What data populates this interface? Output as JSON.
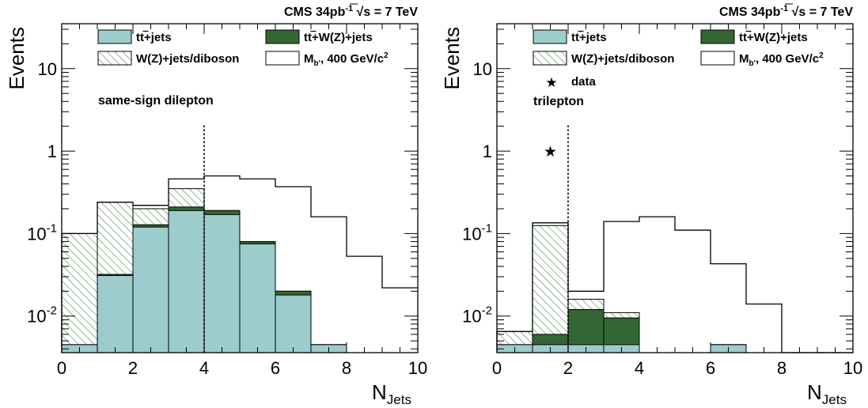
{
  "chart_data": [
    {
      "type": "bar",
      "header": {
        "prefix": "CMS 34pb",
        "sup": "-1",
        "energy": "s = 7 TeV"
      },
      "ylabel": "Events",
      "xlabel": {
        "main": "N",
        "sub": "Jets"
      },
      "annotation": "same-sign dilepton",
      "xlim": [
        0,
        10
      ],
      "ylim": [
        0.0036,
        35
      ],
      "yscale": "log",
      "x_ticks": [
        "0",
        "2",
        "4",
        "6",
        "8",
        "10"
      ],
      "y_ticks": [
        {
          "value": 0.01,
          "base": "10",
          "exp": "-2"
        },
        {
          "value": 0.1,
          "base": "10",
          "exp": "-1"
        },
        {
          "value": 1,
          "base": "1",
          "exp": ""
        },
        {
          "value": 10,
          "base": "10",
          "exp": ""
        }
      ],
      "cut_line": 4,
      "legend": {
        "ttjets": {
          "main": "tt",
          "suffix": "+jets"
        },
        "ttwz": {
          "main": "tt",
          "suffix": "+W(Z)+jets"
        },
        "wz": {
          "text": "W(Z)+jets/diboson"
        },
        "signal": {
          "main": "M",
          "sub": "b'",
          "mid": ", 400 GeV/c",
          "sup": "2"
        }
      },
      "bin_edges": [
        0,
        1,
        2,
        3,
        4,
        5,
        6,
        7,
        8,
        9,
        10
      ],
      "stack": {
        "ttjets": [
          0.0045,
          0.031,
          0.12,
          0.19,
          0.17,
          0.075,
          0.018,
          0.0045,
          0,
          0
        ],
        "ttwz": [
          0.0045,
          0.032,
          0.128,
          0.21,
          0.19,
          0.08,
          0.02,
          0.0045,
          0,
          0
        ],
        "wz": [
          0.1,
          0.24,
          0.2,
          0.35,
          0.19,
          0.08,
          0.02,
          0.0045,
          0,
          0
        ]
      },
      "signal": [
        0.1,
        0.24,
        0.22,
        0.46,
        0.5,
        0.46,
        0.37,
        0.16,
        0.053,
        0.022
      ],
      "data_points": []
    },
    {
      "type": "bar",
      "header": {
        "prefix": "CMS 34pb",
        "sup": "-1",
        "energy": "s = 7 TeV"
      },
      "ylabel": "Events",
      "xlabel": {
        "main": "N",
        "sub": "Jets"
      },
      "annotation": "trilepton",
      "xlim": [
        0,
        10
      ],
      "ylim": [
        0.0036,
        35
      ],
      "yscale": "log",
      "x_ticks": [
        "0",
        "2",
        "4",
        "6",
        "8",
        "10"
      ],
      "y_ticks": [
        {
          "value": 0.01,
          "base": "10",
          "exp": "-2"
        },
        {
          "value": 0.1,
          "base": "10",
          "exp": "-1"
        },
        {
          "value": 1,
          "base": "1",
          "exp": ""
        },
        {
          "value": 10,
          "base": "10",
          "exp": ""
        }
      ],
      "cut_line": 2,
      "legend": {
        "ttjets": {
          "main": "tt",
          "suffix": "+jets"
        },
        "ttwz": {
          "main": "tt",
          "suffix": "+W(Z)+jets"
        },
        "wz": {
          "text": "W(Z)+jets/diboson"
        },
        "signal": {
          "main": "M",
          "sub": "b'",
          "mid": ", 400 GeV/c",
          "sup": "2"
        },
        "data": {
          "marker": "★",
          "text": "data"
        }
      },
      "bin_edges": [
        0,
        1,
        2,
        3,
        4,
        5,
        6,
        7,
        8,
        9,
        10
      ],
      "stack": {
        "ttjets": [
          0.0045,
          0.0045,
          0.0045,
          0.0045,
          0,
          0,
          0.0045,
          0,
          0,
          0
        ],
        "ttwz": [
          0.0045,
          0.006,
          0.012,
          0.0095,
          0,
          0,
          0.0045,
          0,
          0,
          0
        ],
        "wz": [
          0.0065,
          0.125,
          0.016,
          0.011,
          0,
          0,
          0.0045,
          0,
          0,
          0
        ]
      },
      "signal": [
        0.0065,
        0.135,
        0.02,
        0.14,
        0.16,
        0.11,
        0.043,
        0.014,
        0,
        0
      ],
      "data_points": [
        {
          "x": 1.5,
          "y": 1.0
        }
      ]
    }
  ]
}
